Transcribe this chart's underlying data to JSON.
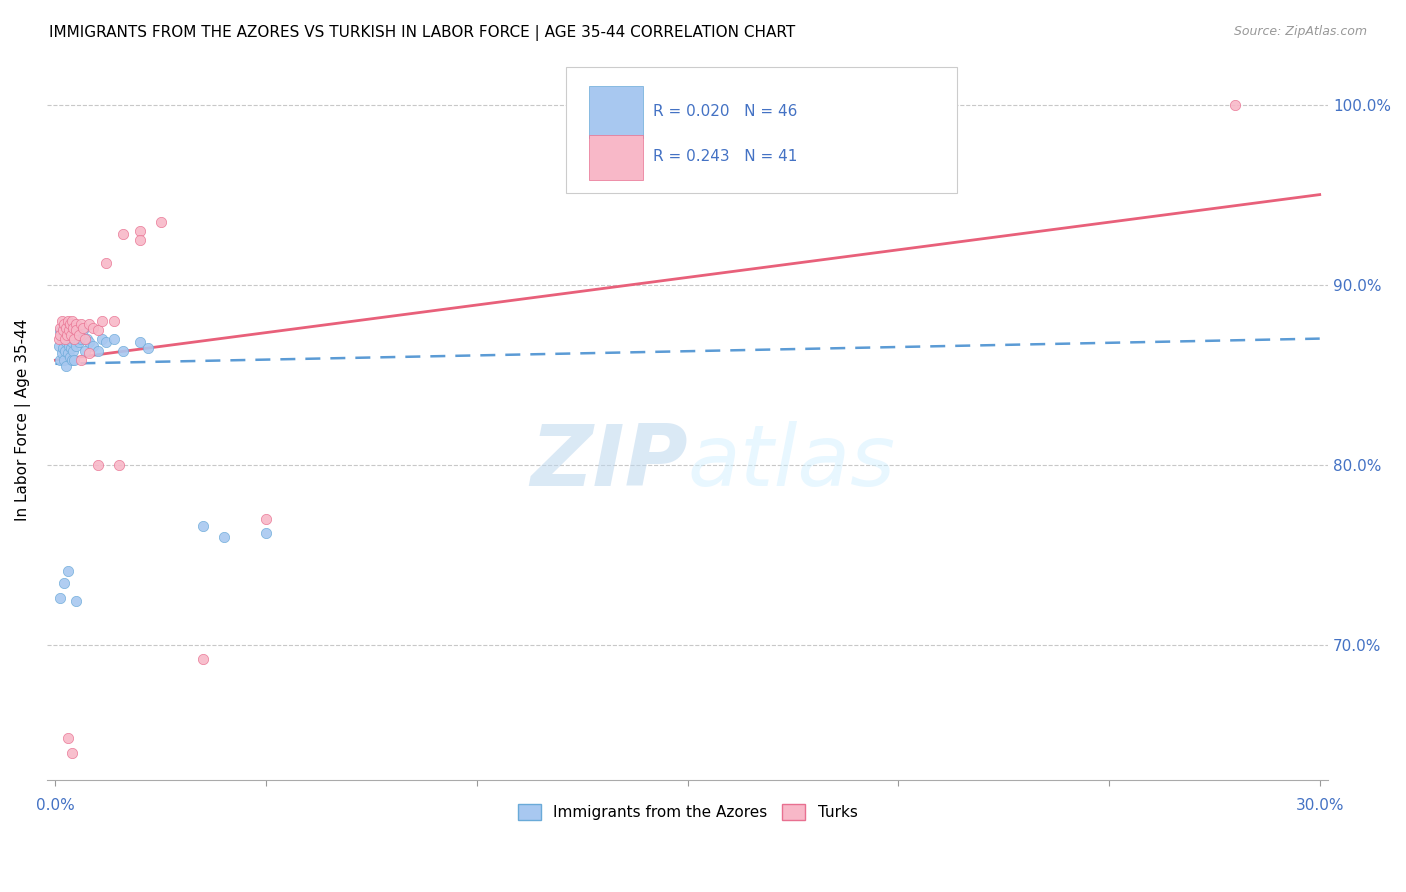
{
  "title": "IMMIGRANTS FROM THE AZORES VS TURKISH IN LABOR FORCE | AGE 35-44 CORRELATION CHART",
  "source": "Source: ZipAtlas.com",
  "ylabel": "In Labor Force | Age 35-44",
  "x_min": 0.0,
  "x_max": 0.3,
  "y_min": 0.625,
  "y_max": 1.025,
  "y_ticks": [
    0.7,
    0.8,
    0.9,
    1.0
  ],
  "y_tick_labels": [
    "70.0%",
    "80.0%",
    "90.0%",
    "100.0%"
  ],
  "blue_color": "#A8C8F0",
  "blue_edge_color": "#6AAAD8",
  "pink_color": "#F8B8C8",
  "pink_edge_color": "#E87090",
  "blue_line_color": "#5B9BD5",
  "pink_line_color": "#E8607A",
  "title_fontsize": 11,
  "source_fontsize": 9,
  "tick_fontsize": 11,
  "legend_r_blue": "R = 0.020",
  "legend_n_blue": "N = 46",
  "legend_r_pink": "R = 0.243",
  "legend_n_pink": "N = 41",
  "blue_x": [
    0.0008,
    0.001,
    0.0012,
    0.0015,
    0.0015,
    0.0018,
    0.002,
    0.002,
    0.0022,
    0.0025,
    0.0025,
    0.0028,
    0.003,
    0.003,
    0.0032,
    0.0035,
    0.0035,
    0.0038,
    0.004,
    0.004,
    0.0042,
    0.0045,
    0.0045,
    0.0048,
    0.005,
    0.0055,
    0.006,
    0.0065,
    0.007,
    0.0075,
    0.008,
    0.009,
    0.01,
    0.011,
    0.012,
    0.014,
    0.016,
    0.02,
    0.022,
    0.035,
    0.04,
    0.05,
    0.001,
    0.002,
    0.003,
    0.005
  ],
  "blue_y": [
    0.866,
    0.858,
    0.874,
    0.862,
    0.87,
    0.865,
    0.858,
    0.87,
    0.863,
    0.855,
    0.868,
    0.87,
    0.862,
    0.875,
    0.866,
    0.86,
    0.872,
    0.865,
    0.858,
    0.868,
    0.863,
    0.87,
    0.858,
    0.866,
    0.872,
    0.868,
    0.87,
    0.875,
    0.863,
    0.87,
    0.868,
    0.866,
    0.863,
    0.87,
    0.868,
    0.87,
    0.863,
    0.868,
    0.865,
    0.766,
    0.76,
    0.762,
    0.726,
    0.734,
    0.741,
    0.724
  ],
  "pink_x": [
    0.0008,
    0.001,
    0.0012,
    0.0015,
    0.0018,
    0.002,
    0.0022,
    0.0025,
    0.0028,
    0.003,
    0.0032,
    0.0035,
    0.0038,
    0.004,
    0.0042,
    0.0045,
    0.0048,
    0.005,
    0.0055,
    0.006,
    0.0065,
    0.007,
    0.008,
    0.009,
    0.01,
    0.011,
    0.012,
    0.014,
    0.016,
    0.02,
    0.003,
    0.004,
    0.006,
    0.008,
    0.01,
    0.015,
    0.02,
    0.025,
    0.035,
    0.05,
    0.28
  ],
  "pink_y": [
    0.87,
    0.876,
    0.872,
    0.88,
    0.875,
    0.878,
    0.87,
    0.876,
    0.872,
    0.88,
    0.875,
    0.878,
    0.872,
    0.88,
    0.876,
    0.87,
    0.878,
    0.875,
    0.872,
    0.878,
    0.876,
    0.87,
    0.878,
    0.876,
    0.875,
    0.88,
    0.912,
    0.88,
    0.928,
    0.93,
    0.648,
    0.64,
    0.858,
    0.862,
    0.8,
    0.8,
    0.925,
    0.935,
    0.692,
    0.77,
    1.0
  ],
  "blue_line_x": [
    0.0,
    0.3
  ],
  "blue_line_y": [
    0.856,
    0.87
  ],
  "pink_line_x": [
    0.0,
    0.3
  ],
  "pink_line_y": [
    0.858,
    0.95
  ]
}
